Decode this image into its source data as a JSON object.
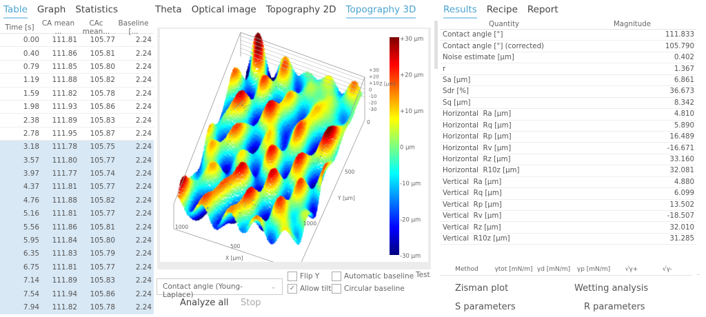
{
  "left": {
    "tabs": [
      "Table",
      "Graph",
      "Statistics"
    ],
    "active_tab": 0,
    "columns": [
      "Time [s]",
      "CA mean ...",
      "CAc mean...",
      "Baseline [..."
    ],
    "rows": [
      [
        "0.00",
        "111.81",
        "105.77",
        "2.24"
      ],
      [
        "0.40",
        "111.86",
        "105.81",
        "2.24"
      ],
      [
        "0.79",
        "111.85",
        "105.80",
        "2.24"
      ],
      [
        "1.19",
        "111.88",
        "105.82",
        "2.24"
      ],
      [
        "1.59",
        "111.82",
        "105.78",
        "2.24"
      ],
      [
        "1.98",
        "111.93",
        "105.86",
        "2.24"
      ],
      [
        "2.38",
        "111.89",
        "105.83",
        "2.24"
      ],
      [
        "2.78",
        "111.95",
        "105.87",
        "2.24"
      ],
      [
        "3.18",
        "111.78",
        "105.75",
        "2.24"
      ],
      [
        "3.57",
        "111.80",
        "105.77",
        "2.24"
      ],
      [
        "3.97",
        "111.77",
        "105.74",
        "2.24"
      ],
      [
        "4.37",
        "111.81",
        "105.77",
        "2.24"
      ],
      [
        "4.76",
        "111.88",
        "105.82",
        "2.24"
      ],
      [
        "5.16",
        "111.81",
        "105.77",
        "2.24"
      ],
      [
        "5.56",
        "111.86",
        "105.81",
        "2.24"
      ],
      [
        "5.95",
        "111.84",
        "105.80",
        "2.24"
      ],
      [
        "6.35",
        "111.83",
        "105.79",
        "2.24"
      ],
      [
        "6.75",
        "111.81",
        "105.77",
        "2.24"
      ],
      [
        "7.14",
        "111.89",
        "105.83",
        "2.24"
      ],
      [
        "7.54",
        "111.94",
        "105.86",
        "2.24"
      ],
      [
        "7.94",
        "111.82",
        "105.78",
        "2.24"
      ]
    ],
    "selected_from": 8
  },
  "center": {
    "tabs": [
      "Theta",
      "Optical image",
      "Topography 2D",
      "Topography 3D"
    ],
    "active_tab": 3,
    "plot": {
      "colorbar_labels": [
        "+30 µm",
        "+20 µm",
        "+10 µm",
        "0 µm",
        "-10 µm",
        "-20 µm",
        "-30 µm"
      ],
      "z_ticks": [
        "+30",
        "+20",
        "+10",
        "0",
        "-10",
        "-20",
        "-30"
      ],
      "z_label": "Z [µm]",
      "y_ticks": [
        "0",
        "500",
        "1000"
      ],
      "y_label": "Y [µm]",
      "x_ticks": [
        "1000",
        "500"
      ],
      "x_label": "X [µm]"
    },
    "method_select": "Contact angle (Young-Laplace)",
    "checkboxes": [
      {
        "label": "Flip Y",
        "checked": false
      },
      {
        "label": "Allow tilt",
        "checked": true
      },
      {
        "label": "Automatic baseline",
        "checked": false
      },
      {
        "label": "Circular baseline",
        "checked": false
      }
    ],
    "test_label": "Test",
    "analyze_all": "Analyze all",
    "stop": "Stop"
  },
  "right": {
    "tabs": [
      "Results",
      "Recipe",
      "Report"
    ],
    "active_tab": 0,
    "columns": [
      "Quantity",
      "Magnitude"
    ],
    "rows": [
      [
        "Contact angle [°]",
        "111.833"
      ],
      [
        "Contact angle [°] (corrected)",
        "105.790"
      ],
      [
        "Noise estimate [µm]",
        "0.402"
      ],
      [
        "r",
        "1.367"
      ],
      [
        "Sa [µm]",
        "6.861"
      ],
      [
        "Sdr [%]",
        "36.673"
      ],
      [
        "Sq [µm]",
        "8.342"
      ],
      [
        "Horizontal  Ra [µm]",
        "4.810"
      ],
      [
        "Horizontal  Rq [µm]",
        "5.890"
      ],
      [
        "Horizontal  Rp [µm]",
        "16.489"
      ],
      [
        "Horizontal  Rv [µm]",
        "-16.671"
      ],
      [
        "Horizontal  Rz [µm]",
        "33.160"
      ],
      [
        "Horizontal  R10z [µm]",
        "32.081"
      ],
      [
        "Vertical  Ra [µm]",
        "4.880"
      ],
      [
        "Vertical  Rq [µm]",
        "6.099"
      ],
      [
        "Vertical  Rp [µm]",
        "13.502"
      ],
      [
        "Vertical  Rv [µm]",
        "-18.507"
      ],
      [
        "Vertical  Rz [µm]",
        "32.010"
      ],
      [
        "Vertical  R10z [µm]",
        "31.285"
      ]
    ],
    "surface_columns": [
      "Method",
      "γtot [mN/m]",
      "γd [mN/m]",
      "γp [mN/m]",
      "√γ+",
      "√γ-"
    ],
    "more": "..",
    "buttons": [
      "Zisman plot",
      "Wetting analysis",
      "S parameters",
      "R parameters"
    ]
  }
}
